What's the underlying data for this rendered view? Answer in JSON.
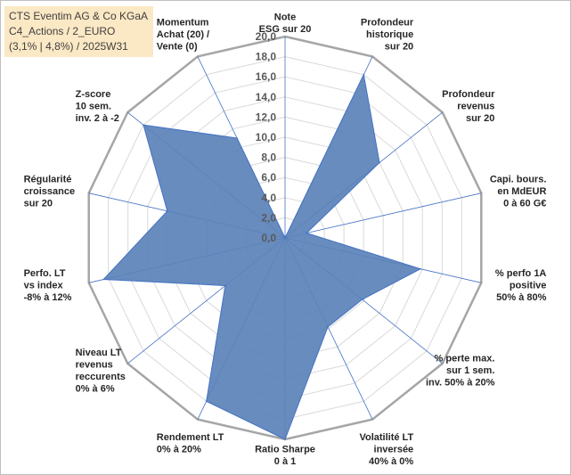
{
  "title": {
    "lines": [
      "CTS Eventim AG & Co KGaA",
      "C4_Actions / 2_EURO",
      "(3,1% | 4,8%) / 2025W31"
    ]
  },
  "chart_data": {
    "type": "radar",
    "rmin": 0,
    "rmax": 20,
    "ticks": [
      "0,0",
      "2,0",
      "4,0",
      "6,0",
      "8,0",
      "10,0",
      "12,0",
      "14,0",
      "16,0",
      "18,0",
      "20,0"
    ],
    "axes": [
      {
        "label": [
          "Note",
          "ESG sur 20"
        ],
        "value": 0
      },
      {
        "label": [
          "Profondeur",
          "historique",
          "sur 20"
        ],
        "value": 18
      },
      {
        "label": [
          "Profondeur",
          "revenus",
          "sur 20"
        ],
        "value": 12
      },
      {
        "label": [
          "Capi. bours.",
          "en MdEUR",
          "0 à 60 G€"
        ],
        "value": 2.2
      },
      {
        "label": [
          "% perfo 1A",
          "positive",
          "50% à 80%"
        ],
        "value": 13.8
      },
      {
        "label": [
          "% perte max.",
          "sur 1 sem.",
          "inv. 50% à 20%"
        ],
        "value": 9.8
      },
      {
        "label": [
          "Volatilité LT",
          "inversée",
          "40% à 0%"
        ],
        "value": 9.8
      },
      {
        "label": [
          "Ratio Sharpe",
          "0 à 1"
        ],
        "value": 20
      },
      {
        "label": [
          "Rendement LT",
          "0% à 20%"
        ],
        "value": 18
      },
      {
        "label": [
          "Niveau LT",
          "revenus",
          "reccurents",
          "0% à 6%"
        ],
        "value": 7.6
      },
      {
        "label": [
          "Perfo. LT",
          "vs index",
          "-8% à 12%"
        ],
        "value": 18.5
      },
      {
        "label": [
          "Régularité",
          "croissance",
          "sur 20"
        ],
        "value": 12
      },
      {
        "label": [
          "Z-score",
          "10 sem.",
          "inv. 2 à -2"
        ],
        "value": 18
      },
      {
        "label": [
          "Momentum",
          "Achat (20) /",
          "Vente (0)"
        ],
        "value": 11
      }
    ],
    "colors": {
      "fill": "#5b82b8",
      "stroke": "#4472c4",
      "grid_inner": "#d9d9d9",
      "grid_outer": "#a6a6a6",
      "spoke": "#4472c4"
    }
  }
}
